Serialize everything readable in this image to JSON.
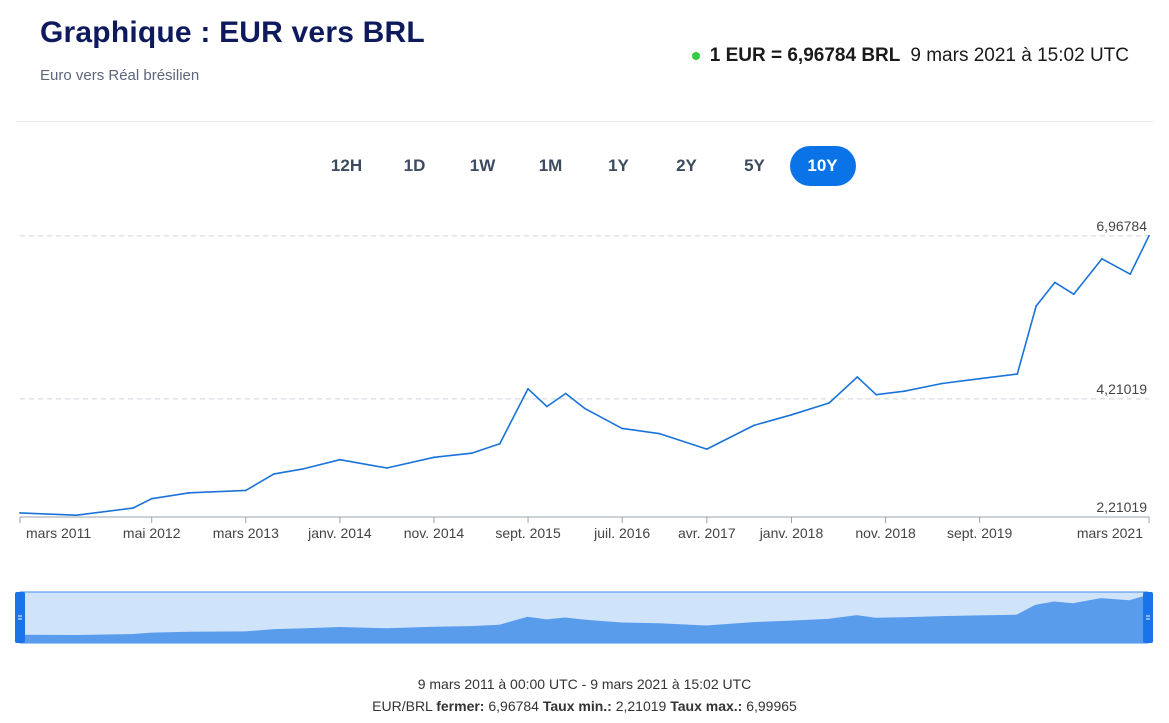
{
  "header": {
    "title": "Graphique : EUR vers BRL",
    "subtitle": "Euro vers Réal brésilien",
    "rate_text": "1 EUR = 6,96784 BRL",
    "rate_time": "9 mars 2021 à 15:02 UTC"
  },
  "tabs": [
    {
      "label": "12H",
      "active": false
    },
    {
      "label": "1D",
      "active": false
    },
    {
      "label": "1W",
      "active": false
    },
    {
      "label": "1M",
      "active": false
    },
    {
      "label": "1Y",
      "active": false
    },
    {
      "label": "2Y",
      "active": false
    },
    {
      "label": "5Y",
      "active": false
    },
    {
      "label": "10Y",
      "active": true
    }
  ],
  "footer": {
    "range": "9 mars 2011 à 00:00 UTC - 9 mars 2021 à 15:02 UTC",
    "pair": "EUR/BRL",
    "close_label": "fermer:",
    "close_value": "6,96784",
    "min_label": "Taux min.:",
    "min_value": "2,21019",
    "max_label": "Taux max.:",
    "max_value": "6,99965"
  },
  "colors": {
    "line": "#1a73d9",
    "accent": "#0a73e8",
    "navigator_fill": "#5a9cec",
    "navigator_bg": "#cfe3fb"
  },
  "chart_data": {
    "type": "line",
    "series": [
      {
        "x": [
          "2011-03",
          "2011-09",
          "2012-03",
          "2012-05",
          "2012-09",
          "2013-03",
          "2013-06",
          "2013-09",
          "2014-01",
          "2014-06",
          "2014-11",
          "2015-03",
          "2015-06",
          "2015-09",
          "2015-11",
          "2016-01",
          "2016-03",
          "2016-07",
          "2016-11",
          "2017-04",
          "2017-09",
          "2018-01",
          "2018-05",
          "2018-08",
          "2018-10",
          "2019-01",
          "2019-05",
          "2019-09",
          "2020-01",
          "2020-03",
          "2020-05",
          "2020-07",
          "2020-10",
          "2021-01",
          "2021-03"
        ],
        "values": [
          2.28,
          2.24,
          2.36,
          2.52,
          2.62,
          2.66,
          2.94,
          3.02,
          3.18,
          3.04,
          3.22,
          3.29,
          3.45,
          4.38,
          4.08,
          4.3,
          4.05,
          3.71,
          3.62,
          3.36,
          3.76,
          3.94,
          4.14,
          4.58,
          4.28,
          4.34,
          4.47,
          4.55,
          4.63,
          5.78,
          6.18,
          5.98,
          6.58,
          6.32,
          6.97
        ]
      }
    ],
    "ytick_labels": [
      "6,96784",
      "4,21019",
      "2,21019"
    ],
    "yticks": [
      6.96784,
      4.21019,
      2.21019
    ],
    "ylim": [
      2.21019,
      6.99965
    ],
    "xlim": [
      "2011-03",
      "2021-03"
    ],
    "xtick_labels": [
      "mars 2011",
      "mai 2012",
      "mars 2013",
      "janv. 2014",
      "nov. 2014",
      "sept. 2015",
      "juil. 2016",
      "avr. 2017",
      "janv. 2018",
      "nov. 2018",
      "sept. 2019",
      "mars 2021"
    ],
    "xticks": [
      "2011-03",
      "2012-05",
      "2013-03",
      "2014-01",
      "2014-11",
      "2015-09",
      "2016-07",
      "2017-04",
      "2018-01",
      "2018-11",
      "2019-09",
      "2021-03"
    ],
    "grid": false,
    "legend": "none"
  }
}
